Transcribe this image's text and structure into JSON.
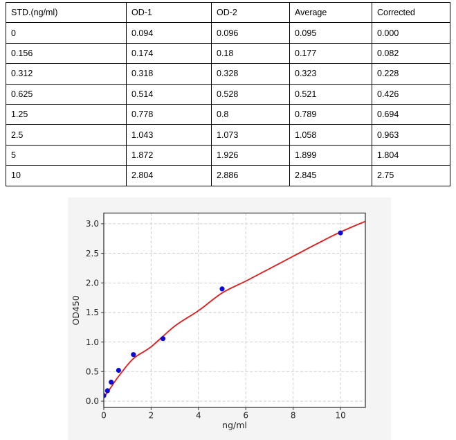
{
  "table": {
    "headers": [
      "STD.(ng/ml)",
      "OD-1",
      "OD-2",
      "Average",
      "Corrected"
    ],
    "rows": [
      [
        "0",
        "0.094",
        "0.096",
        "0.095",
        "0.000"
      ],
      [
        "0.156",
        "0.174",
        "0.18",
        "0.177",
        "0.082"
      ],
      [
        "0.312",
        "0.318",
        "0.328",
        "0.323",
        "0.228"
      ],
      [
        "0.625",
        "0.514",
        "0.528",
        "0.521",
        "0.426"
      ],
      [
        "1.25",
        "0.778",
        "0.8",
        "0.789",
        "0.694"
      ],
      [
        "2.5",
        "1.043",
        "1.073",
        "1.058",
        "0.963"
      ],
      [
        "5",
        "1.872",
        "1.926",
        "1.899",
        "1.804"
      ],
      [
        "10",
        "2.804",
        "2.886",
        "2.845",
        "2.75"
      ]
    ]
  },
  "chart_data": {
    "type": "scatter",
    "title": "",
    "xlabel": "ng/ml",
    "ylabel": "OD450",
    "x_ticks": [
      0,
      2,
      4,
      6,
      8,
      10
    ],
    "y_ticks": [
      0.0,
      0.5,
      1.0,
      1.5,
      2.0,
      2.5,
      3.0
    ],
    "xlim": [
      0,
      11.05
    ],
    "ylim": [
      -0.105,
      3.18
    ],
    "grid": true,
    "legend": "none",
    "series": [
      {
        "name": "standard-points",
        "type": "scatter",
        "color": "#0b0bd8",
        "x": [
          0,
          0.156,
          0.312,
          0.625,
          1.25,
          2.5,
          5,
          10
        ],
        "y": [
          0.095,
          0.177,
          0.323,
          0.521,
          0.789,
          1.058,
          1.899,
          2.845
        ]
      },
      {
        "name": "fit-curve",
        "type": "line",
        "color": "#dd2020",
        "points": [
          [
            0,
            0.07
          ],
          [
            0.156,
            0.15
          ],
          [
            0.312,
            0.24
          ],
          [
            0.625,
            0.42
          ],
          [
            1.25,
            0.72
          ],
          [
            2,
            0.92
          ],
          [
            3,
            1.27
          ],
          [
            4,
            1.53
          ],
          [
            5,
            1.83
          ],
          [
            6,
            2.03
          ],
          [
            7,
            2.24
          ],
          [
            8,
            2.45
          ],
          [
            9,
            2.66
          ],
          [
            10,
            2.86
          ],
          [
            11.05,
            3.04
          ]
        ]
      }
    ],
    "colors": {
      "figure_bg": "#f4f4f4",
      "plot_bg": "#ffffff",
      "grid": "#c9c9c9",
      "spine": "#3a3a3a",
      "tick_label": "#262626"
    }
  }
}
